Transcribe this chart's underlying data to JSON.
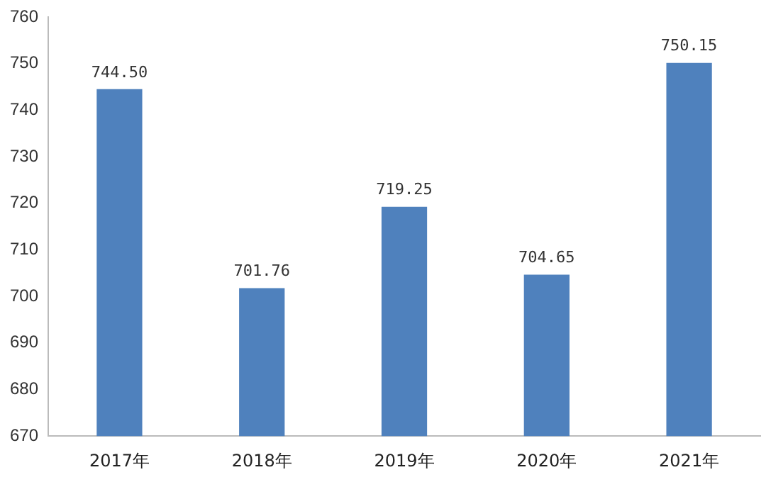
{
  "chart_data": {
    "type": "bar",
    "categories": [
      "2017年",
      "2018年",
      "2019年",
      "2020年",
      "2021年"
    ],
    "values": [
      744.5,
      701.76,
      719.25,
      704.65,
      750.15
    ],
    "value_labels": [
      "744.50",
      "701.76",
      "719.25",
      "704.65",
      "750.15"
    ],
    "color": "#4f81bd",
    "ylim": [
      670,
      760
    ],
    "yticks": [
      670,
      680,
      690,
      700,
      710,
      720,
      730,
      740,
      750,
      760
    ],
    "grid": false,
    "legend": false
  }
}
